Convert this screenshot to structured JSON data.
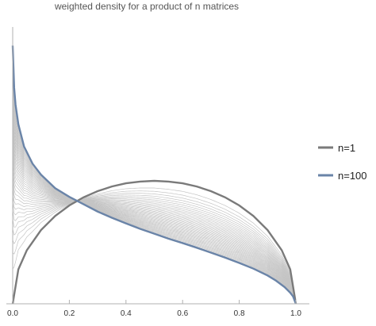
{
  "chart_data": {
    "type": "line",
    "title": "weighted density for a product of n matrices",
    "xlabel": "",
    "ylabel": "",
    "xlim": [
      0,
      1
    ],
    "x_ticks": [
      "0.0",
      "0.2",
      "0.4",
      "0.6",
      "0.8",
      "1.0"
    ],
    "x_tick_values": [
      0,
      0.2,
      0.4,
      0.6,
      0.8,
      1.0
    ],
    "grid": false,
    "legend_position": "right",
    "n_curves": 100,
    "series": [
      {
        "name": "n=1",
        "color": "#7a7a7a",
        "x": [
          0,
          0.02,
          0.05,
          0.1,
          0.15,
          0.2,
          0.25,
          0.3,
          0.35,
          0.4,
          0.45,
          0.5,
          0.55,
          0.6,
          0.65,
          0.7,
          0.75,
          0.8,
          0.85,
          0.9,
          0.95,
          0.98,
          1.0
        ],
        "values": [
          0,
          0.14,
          0.218,
          0.3,
          0.357,
          0.4,
          0.433,
          0.458,
          0.477,
          0.49,
          0.497,
          0.5,
          0.497,
          0.49,
          0.477,
          0.458,
          0.433,
          0.4,
          0.357,
          0.3,
          0.218,
          0.14,
          0
        ]
      },
      {
        "name": "n=100",
        "color": "#6a84a8",
        "x": [
          0,
          0.005,
          0.01,
          0.02,
          0.04,
          0.07,
          0.1,
          0.15,
          0.2,
          0.25,
          0.3,
          0.35,
          0.4,
          0.45,
          0.5,
          0.55,
          0.6,
          0.65,
          0.7,
          0.75,
          0.8,
          0.85,
          0.9,
          0.93,
          0.96,
          0.98,
          0.99,
          1.0
        ],
        "values": [
          1.05,
          0.88,
          0.81,
          0.73,
          0.64,
          0.57,
          0.525,
          0.47,
          0.435,
          0.405,
          0.375,
          0.35,
          0.327,
          0.305,
          0.285,
          0.265,
          0.247,
          0.228,
          0.208,
          0.188,
          0.166,
          0.143,
          0.115,
          0.094,
          0.068,
          0.045,
          0.03,
          0
        ]
      }
    ]
  },
  "colors": {
    "n1": "#7a7a7a",
    "n100": "#6a84a8",
    "intermediate": "#c4c4c4",
    "axis": "#b0b0b0"
  }
}
